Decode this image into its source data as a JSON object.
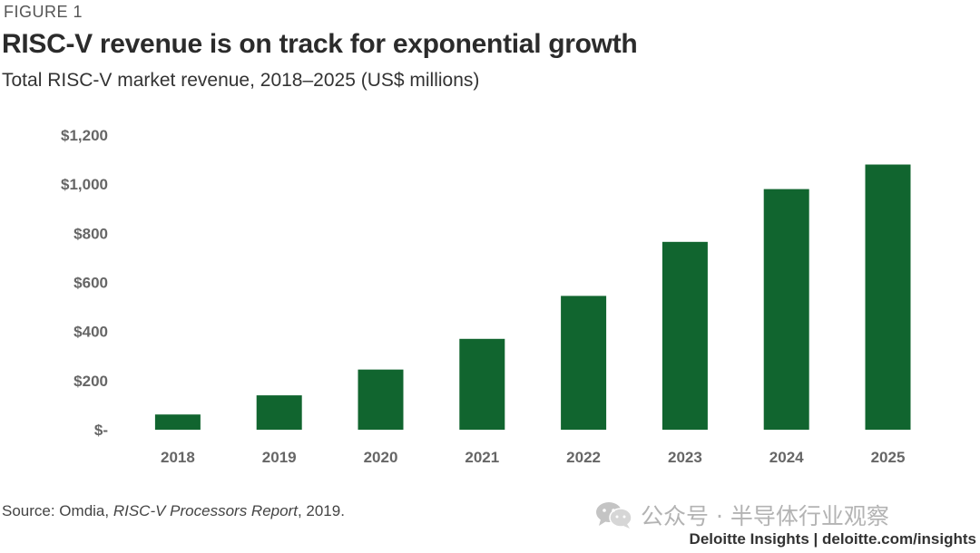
{
  "figure": {
    "label": "FIGURE 1",
    "title": "RISC-V revenue is on track for exponential growth",
    "subtitle": "Total RISC-V market revenue, 2018–2025 (US$ millions)"
  },
  "chart_data": {
    "type": "bar",
    "categories": [
      "2018",
      "2019",
      "2020",
      "2021",
      "2022",
      "2023",
      "2024",
      "2025"
    ],
    "values": [
      62,
      140,
      245,
      370,
      545,
      765,
      980,
      1080
    ],
    "ylim": [
      0,
      1200
    ],
    "yticks": [
      0,
      200,
      400,
      600,
      800,
      1000,
      1200
    ],
    "ytick_labels": [
      "$-",
      "$200",
      "$400",
      "$600",
      "$800",
      "$1,000",
      "$1,200"
    ],
    "xlabel": "",
    "ylabel": "",
    "bar_color": "#11652f",
    "grid": false,
    "legend": "none"
  },
  "source": {
    "prefix": "Source: Omdia, ",
    "report": "RISC-V Processors Report",
    "suffix": ", 2019."
  },
  "watermark": {
    "icon": "wechat-icon",
    "text": "公众号 · 半导体行业观察"
  },
  "footer": {
    "brand": "Deloitte Insights | deloitte.com/insights"
  }
}
